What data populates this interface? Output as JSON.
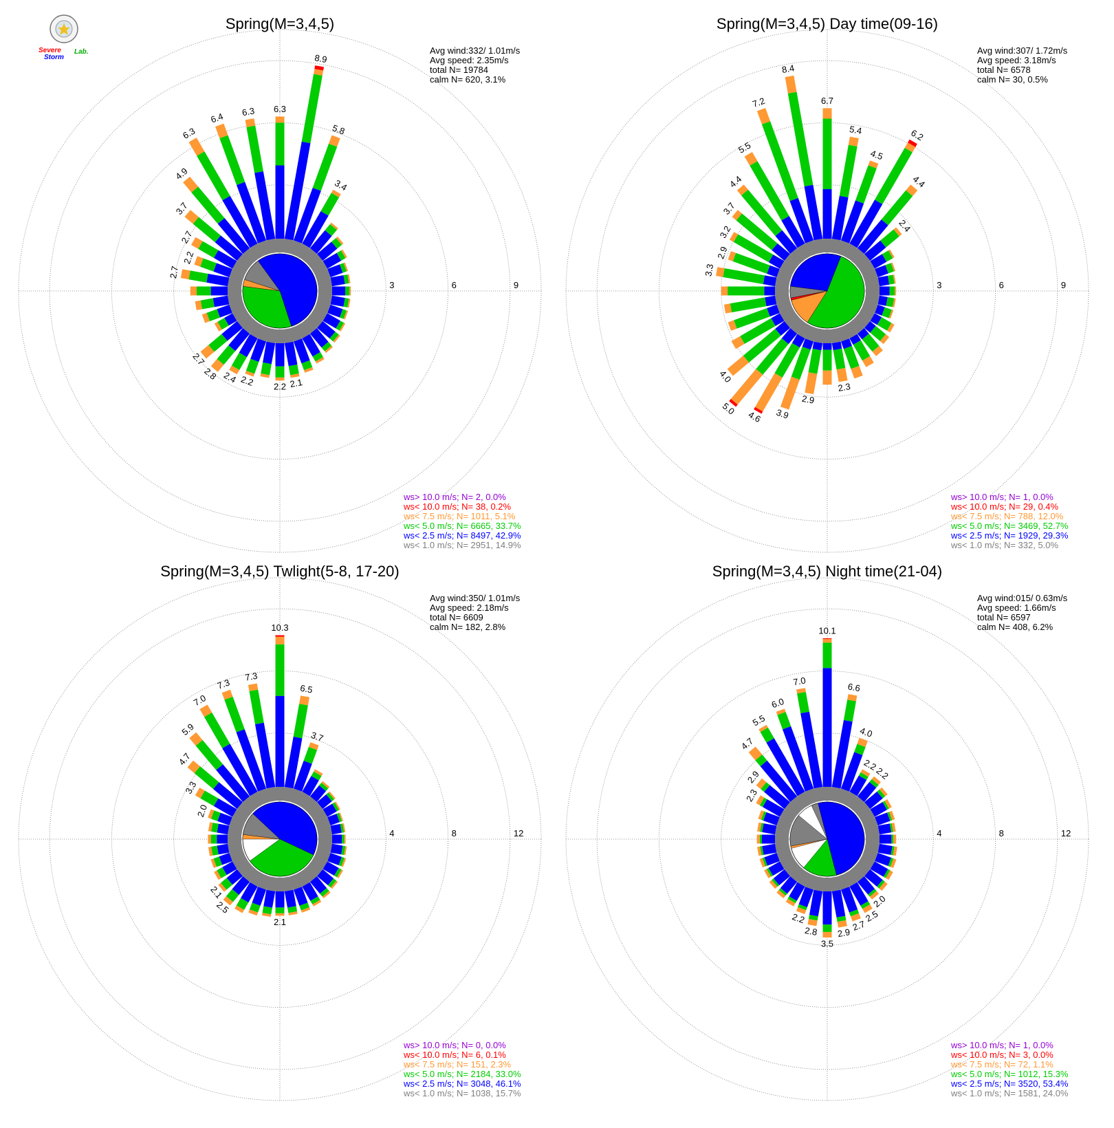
{
  "logo": {
    "text_a": "Severe",
    "text_b": "Storm",
    "text_c": "Lab."
  },
  "colors": {
    "purple": "#9400d3",
    "red": "#ff0000",
    "orange": "#ff9933",
    "green": "#00cc00",
    "blue": "#0000ff",
    "gray": "#808080",
    "calm": "#ffffff"
  },
  "chart_data": [
    {
      "type": "wind-rose",
      "title": "Spring(M=3,4,5)",
      "stats": [
        "Avg wind:332/ 1.01m/s",
        "Avg speed: 2.35m/s",
        "total N=      19784",
        "calm N=    620,   3.1%"
      ],
      "ring_labels": [
        "3",
        "6",
        "9"
      ],
      "rmax": 10.5,
      "bins": [
        "ws< 1.0",
        "ws< 2.5",
        "ws< 5.0",
        "ws< 7.5",
        "ws<10.0"
      ],
      "totals": [
        2.7,
        2.2,
        2.7,
        3.7,
        4.9,
        6.3,
        6.4,
        6.3,
        6.3,
        8.9,
        5.8,
        3.4,
        2.0,
        1.7,
        1.5,
        1.3,
        1.3,
        1.3,
        1.3,
        1.3,
        1.4,
        1.5,
        1.6,
        1.8,
        2.0,
        2.1,
        2.2,
        2.1,
        2.2,
        2.4,
        2.8,
        2.7,
        1.4,
        1.8,
        2.0,
        2.2
      ],
      "labels": [
        "2.7",
        "2.2",
        "2.7",
        "3.7",
        "4.9",
        "6.3",
        "6.4",
        "6.3",
        "6.3",
        "8.9",
        "5.8",
        "3.4",
        "",
        "",
        "",
        "",
        "",
        "",
        "",
        "",
        "",
        "",
        "",
        "",
        "",
        "2.1",
        "2.2",
        "",
        "2.2",
        "2.4",
        "2.8",
        "2.7",
        "",
        "",
        "",
        ""
      ],
      "blue_frac": [
        0.45,
        0.45,
        0.45,
        0.42,
        0.42,
        0.45,
        0.5,
        0.56,
        0.6,
        0.56,
        0.5,
        0.6,
        0.7,
        0.7,
        0.7,
        0.7,
        0.7,
        0.7,
        0.7,
        0.7,
        0.72,
        0.72,
        0.72,
        0.72,
        0.7,
        0.66,
        0.62,
        0.6,
        0.58,
        0.52,
        0.45,
        0.42,
        0.45,
        0.45,
        0.45,
        0.45
      ],
      "green_frac": [
        0.38,
        0.38,
        0.38,
        0.42,
        0.44,
        0.42,
        0.4,
        0.38,
        0.35,
        0.39,
        0.42,
        0.34,
        0.24,
        0.22,
        0.22,
        0.22,
        0.22,
        0.22,
        0.22,
        0.22,
        0.2,
        0.2,
        0.2,
        0.2,
        0.22,
        0.26,
        0.3,
        0.32,
        0.34,
        0.36,
        0.36,
        0.36,
        0.38,
        0.38,
        0.38,
        0.38
      ],
      "red_frac": [
        0,
        0,
        0,
        0,
        0,
        0,
        0,
        0,
        0,
        0.02,
        0,
        0,
        0,
        0,
        0,
        0,
        0,
        0,
        0,
        0,
        0,
        0,
        0,
        0,
        0,
        0,
        0,
        0,
        0,
        0,
        0,
        0,
        0,
        0,
        0,
        0
      ],
      "pie": [
        {
          "bin": "blue",
          "frac": 0.55,
          "start": -0.1
        },
        {
          "bin": "green",
          "frac": 0.32,
          "start": 0.45
        },
        {
          "bin": "orange",
          "frac": 0.03,
          "start": 0.77
        },
        {
          "bin": "gray",
          "frac": 0.1,
          "start": 0.8
        }
      ],
      "legend": [
        {
          "text": "ws> 10.0 m/s; N=     2,  0.0%",
          "color": "#9400d3"
        },
        {
          "text": "ws< 10.0 m/s; N=    38,  0.2%",
          "color": "#ff0000"
        },
        {
          "text": "ws<  7.5 m/s; N=  1011,  5.1%",
          "color": "#ff9933"
        },
        {
          "text": "ws<  5.0 m/s; N=  6665, 33.7%",
          "color": "#00cc00"
        },
        {
          "text": "ws<  2.5 m/s; N=  8497, 42.9%",
          "color": "#0000ff"
        },
        {
          "text": "ws<  1.0 m/s; N=  2951, 14.9%",
          "color": "#808080"
        }
      ]
    },
    {
      "type": "wind-rose",
      "title": "Spring(M=3,4,5) Day time(09-16)",
      "stats": [
        "Avg wind:307/ 1.72m/s",
        "Avg speed: 3.18m/s",
        "total N=       6578",
        "calm N=     30,   0.5%"
      ],
      "ring_labels": [
        "3",
        "6",
        "9"
      ],
      "rmax": 10.5,
      "bins": [
        "ws< 1.0",
        "ws< 2.5",
        "ws< 5.0",
        "ws< 7.5",
        "ws<10.0"
      ],
      "totals": [
        3.3,
        2.9,
        3.2,
        3.7,
        4.4,
        5.5,
        7.2,
        8.4,
        6.7,
        5.4,
        4.5,
        6.2,
        4.4,
        2.4,
        1.5,
        1.3,
        1.2,
        1.2,
        1.2,
        1.2,
        1.5,
        1.6,
        1.8,
        2.0,
        2.3,
        2.3,
        2.4,
        2.9,
        3.9,
        4.6,
        5.0,
        4.0,
        3.1,
        2.9,
        2.9,
        3.0
      ],
      "labels": [
        "3.3",
        "2.9",
        "3.2",
        "3.7",
        "4.4",
        "5.5",
        "7.2",
        "8.4",
        "6.7",
        "5.4",
        "4.5",
        "6.2",
        "4.4",
        "2.4",
        "",
        "",
        "",
        "",
        "",
        "",
        "",
        "",
        "",
        "",
        "",
        "2.3",
        "",
        "2.9",
        "3.9",
        "4.6",
        "5.0",
        "4.0",
        "",
        "",
        "",
        ""
      ],
      "blue_frac": [
        0.2,
        0.2,
        0.22,
        0.24,
        0.28,
        0.3,
        0.32,
        0.33,
        0.38,
        0.42,
        0.5,
        0.42,
        0.45,
        0.5,
        0.6,
        0.6,
        0.6,
        0.6,
        0.5,
        0.45,
        0.35,
        0.3,
        0.25,
        0.22,
        0.2,
        0.18,
        0.16,
        0.14,
        0.12,
        0.12,
        0.14,
        0.16,
        0.18,
        0.2,
        0.2,
        0.2
      ],
      "green_frac": [
        0.68,
        0.7,
        0.7,
        0.68,
        0.64,
        0.6,
        0.58,
        0.57,
        0.54,
        0.5,
        0.44,
        0.5,
        0.46,
        0.42,
        0.32,
        0.32,
        0.32,
        0.32,
        0.4,
        0.45,
        0.5,
        0.52,
        0.55,
        0.55,
        0.54,
        0.5,
        0.5,
        0.46,
        0.44,
        0.4,
        0.42,
        0.56,
        0.64,
        0.68,
        0.68,
        0.68
      ],
      "red_frac": [
        0,
        0,
        0,
        0,
        0,
        0,
        0,
        0,
        0,
        0,
        0,
        0.03,
        0,
        0,
        0,
        0,
        0,
        0,
        0,
        0,
        0,
        0,
        0,
        0,
        0,
        0,
        0,
        0,
        0,
        0.03,
        0.03,
        0,
        0,
        0,
        0,
        0
      ],
      "pie": [
        {
          "bin": "blue",
          "frac": 0.29,
          "start": -0.23
        },
        {
          "bin": "green",
          "frac": 0.53,
          "start": 0.06
        },
        {
          "bin": "orange",
          "frac": 0.12,
          "start": 0.59
        },
        {
          "bin": "red",
          "frac": 0.01,
          "start": 0.71
        },
        {
          "bin": "gray",
          "frac": 0.05,
          "start": 0.72
        }
      ],
      "legend": [
        {
          "text": "ws> 10.0 m/s; N=     1,  0.0%",
          "color": "#9400d3"
        },
        {
          "text": "ws< 10.0 m/s; N=    29,  0.4%",
          "color": "#ff0000"
        },
        {
          "text": "ws<  7.5 m/s; N=   788, 12.0%",
          "color": "#ff9933"
        },
        {
          "text": "ws<  5.0 m/s; N=  3469, 52.7%",
          "color": "#00cc00"
        },
        {
          "text": "ws<  2.5 m/s; N=  1929, 29.3%",
          "color": "#0000ff"
        },
        {
          "text": "ws<  1.0 m/s; N=   332,  5.0%",
          "color": "#808080"
        }
      ]
    },
    {
      "type": "wind-rose",
      "title": "Spring(M=3,4,5) Twlight(5-8, 17-20)",
      "stats": [
        "Avg wind:350/ 1.01m/s",
        "Avg speed: 2.18m/s",
        "total N=       6609",
        "calm N=    182,   2.8%"
      ],
      "ring_labels": [
        "4",
        "8",
        "12"
      ],
      "rmax": 14,
      "bins": [
        "ws< 1.0",
        "ws< 2.5",
        "ws< 5.0",
        "ws< 7.5",
        "ws<10.0"
      ],
      "totals": [
        1.8,
        2.0,
        3.3,
        4.7,
        5.9,
        7.0,
        7.3,
        7.3,
        10.3,
        6.5,
        3.7,
        2.2,
        1.8,
        1.6,
        1.5,
        1.4,
        1.4,
        1.4,
        1.5,
        1.6,
        1.7,
        1.8,
        1.9,
        2.0,
        2.1,
        2.1,
        2.1,
        2.2,
        2.3,
        2.5,
        2.5,
        2.1,
        1.9,
        1.8,
        1.8,
        1.8
      ],
      "labels": [
        "",
        "2.0",
        "3.3",
        "4.7",
        "5.9",
        "7.0",
        "7.3",
        "7.3",
        "10.3",
        "6.5",
        "3.7",
        "",
        "",
        "",
        "",
        "",
        "",
        "",
        "",
        "",
        "",
        "",
        "",
        "",
        "",
        "",
        "2.1",
        "",
        "",
        "",
        "2.5",
        "2.1",
        "",
        "",
        "",
        ""
      ],
      "blue_frac": [
        0.55,
        0.55,
        0.5,
        0.48,
        0.5,
        0.55,
        0.6,
        0.62,
        0.6,
        0.55,
        0.6,
        0.7,
        0.72,
        0.72,
        0.72,
        0.72,
        0.72,
        0.72,
        0.72,
        0.72,
        0.72,
        0.72,
        0.72,
        0.72,
        0.7,
        0.68,
        0.66,
        0.64,
        0.62,
        0.6,
        0.55,
        0.55,
        0.55,
        0.55,
        0.55,
        0.55
      ],
      "green_frac": [
        0.3,
        0.3,
        0.36,
        0.38,
        0.38,
        0.36,
        0.33,
        0.32,
        0.34,
        0.36,
        0.3,
        0.2,
        0.18,
        0.18,
        0.18,
        0.18,
        0.18,
        0.18,
        0.18,
        0.18,
        0.18,
        0.18,
        0.18,
        0.18,
        0.2,
        0.22,
        0.24,
        0.26,
        0.26,
        0.28,
        0.3,
        0.32,
        0.3,
        0.3,
        0.3,
        0.3
      ],
      "red_frac": [
        0,
        0,
        0,
        0,
        0,
        0,
        0,
        0,
        0.01,
        0,
        0,
        0,
        0,
        0,
        0,
        0,
        0,
        0,
        0,
        0,
        0,
        0,
        0,
        0,
        0,
        0,
        0,
        0,
        0,
        0,
        0,
        0,
        0,
        0,
        0,
        0
      ],
      "pie": [
        {
          "bin": "blue",
          "frac": 0.47,
          "start": -0.15
        },
        {
          "bin": "green",
          "frac": 0.33,
          "start": 0.32
        },
        {
          "bin": "orange",
          "frac": 0.02,
          "start": 0.75
        },
        {
          "bin": "gray",
          "frac": 0.1,
          "start": 0.77
        }
      ],
      "legend": [
        {
          "text": "ws> 10.0 m/s; N=     0,  0.0%",
          "color": "#9400d3"
        },
        {
          "text": "ws< 10.0 m/s; N=     6,  0.1%",
          "color": "#ff0000"
        },
        {
          "text": "ws<  7.5 m/s; N=   151,  2.3%",
          "color": "#ff9933"
        },
        {
          "text": "ws<  5.0 m/s; N=  2184, 33.0%",
          "color": "#00cc00"
        },
        {
          "text": "ws<  2.5 m/s; N=  3048, 46.1%",
          "color": "#0000ff"
        },
        {
          "text": "ws<  1.0 m/s; N=  1038, 15.7%",
          "color": "#808080"
        }
      ]
    },
    {
      "type": "wind-rose",
      "title": "Spring(M=3,4,5) Night time(21-04)",
      "stats": [
        "Avg wind:015/ 0.63m/s",
        "Avg speed: 1.66m/s",
        "total N=       6597",
        "calm N=    408,   6.2%"
      ],
      "ring_labels": [
        "4",
        "8",
        "12"
      ],
      "rmax": 14,
      "bins": [
        "ws< 1.0",
        "ws< 2.5",
        "ws< 5.0",
        "ws< 7.5",
        "ws<10.0"
      ],
      "totals": [
        1.7,
        1.8,
        2.3,
        2.9,
        4.7,
        5.5,
        6.0,
        7.0,
        10.1,
        6.6,
        4.0,
        2.2,
        2.2,
        2.0,
        1.8,
        1.7,
        1.6,
        1.6,
        1.7,
        1.8,
        1.9,
        2.0,
        2.0,
        2.5,
        2.7,
        2.9,
        3.5,
        2.8,
        2.2,
        2.0,
        1.9,
        1.8,
        1.7,
        1.7,
        1.7,
        1.7
      ],
      "labels": [
        "",
        "",
        "2.3",
        "2.9",
        "4.7",
        "5.5",
        "6.0",
        "7.0",
        "10.1",
        "6.6",
        "4.0",
        "2.2",
        "2.2",
        "",
        "",
        "",
        "",
        "",
        "",
        "",
        "",
        "",
        "2.0",
        "2.5",
        "2.7",
        "2.9",
        "3.5",
        "2.8",
        "2.2",
        "",
        "",
        "",
        "",
        "",
        "",
        ""
      ],
      "blue_frac": [
        0.72,
        0.72,
        0.72,
        0.72,
        0.72,
        0.8,
        0.78,
        0.76,
        0.8,
        0.72,
        0.72,
        0.72,
        0.72,
        0.72,
        0.72,
        0.72,
        0.72,
        0.72,
        0.72,
        0.72,
        0.72,
        0.72,
        0.72,
        0.72,
        0.72,
        0.72,
        0.72,
        0.72,
        0.72,
        0.72,
        0.72,
        0.72,
        0.72,
        0.72,
        0.72,
        0.72
      ],
      "green_frac": [
        0.12,
        0.12,
        0.12,
        0.12,
        0.12,
        0.16,
        0.18,
        0.2,
        0.17,
        0.22,
        0.16,
        0.14,
        0.14,
        0.14,
        0.12,
        0.12,
        0.12,
        0.12,
        0.12,
        0.12,
        0.12,
        0.12,
        0.12,
        0.12,
        0.12,
        0.12,
        0.16,
        0.12,
        0.12,
        0.12,
        0.12,
        0.12,
        0.12,
        0.12,
        0.12,
        0.12
      ],
      "red_frac": [
        0,
        0,
        0,
        0,
        0,
        0,
        0,
        0,
        0.005,
        0,
        0,
        0,
        0,
        0,
        0,
        0,
        0,
        0,
        0,
        0,
        0,
        0,
        0,
        0,
        0,
        0,
        0,
        0,
        0,
        0,
        0,
        0,
        0,
        0,
        0,
        0
      ],
      "pie": [
        {
          "bin": "blue",
          "frac": 0.53,
          "start": -0.07
        },
        {
          "bin": "green",
          "frac": 0.15,
          "start": 0.46
        },
        {
          "bin": "orange",
          "frac": 0.01,
          "start": 0.71
        },
        {
          "bin": "gray",
          "frac": 0.24,
          "start": 0.72
        },
        {
          "bin": "calm",
          "frac": 0.07,
          "start": 0.86
        }
      ],
      "legend": [
        {
          "text": "ws> 10.0 m/s; N=     1,  0.0%",
          "color": "#9400d3"
        },
        {
          "text": "ws< 10.0 m/s; N=     3,  0.0%",
          "color": "#ff0000"
        },
        {
          "text": "ws<  7.5 m/s; N=    72,  1.1%",
          "color": "#ff9933"
        },
        {
          "text": "ws<  5.0 m/s; N=  1012, 15.3%",
          "color": "#00cc00"
        },
        {
          "text": "ws<  2.5 m/s; N=  3520, 53.4%",
          "color": "#0000ff"
        },
        {
          "text": "ws<  1.0 m/s; N=  1581, 24.0%",
          "color": "#808080"
        }
      ]
    }
  ]
}
